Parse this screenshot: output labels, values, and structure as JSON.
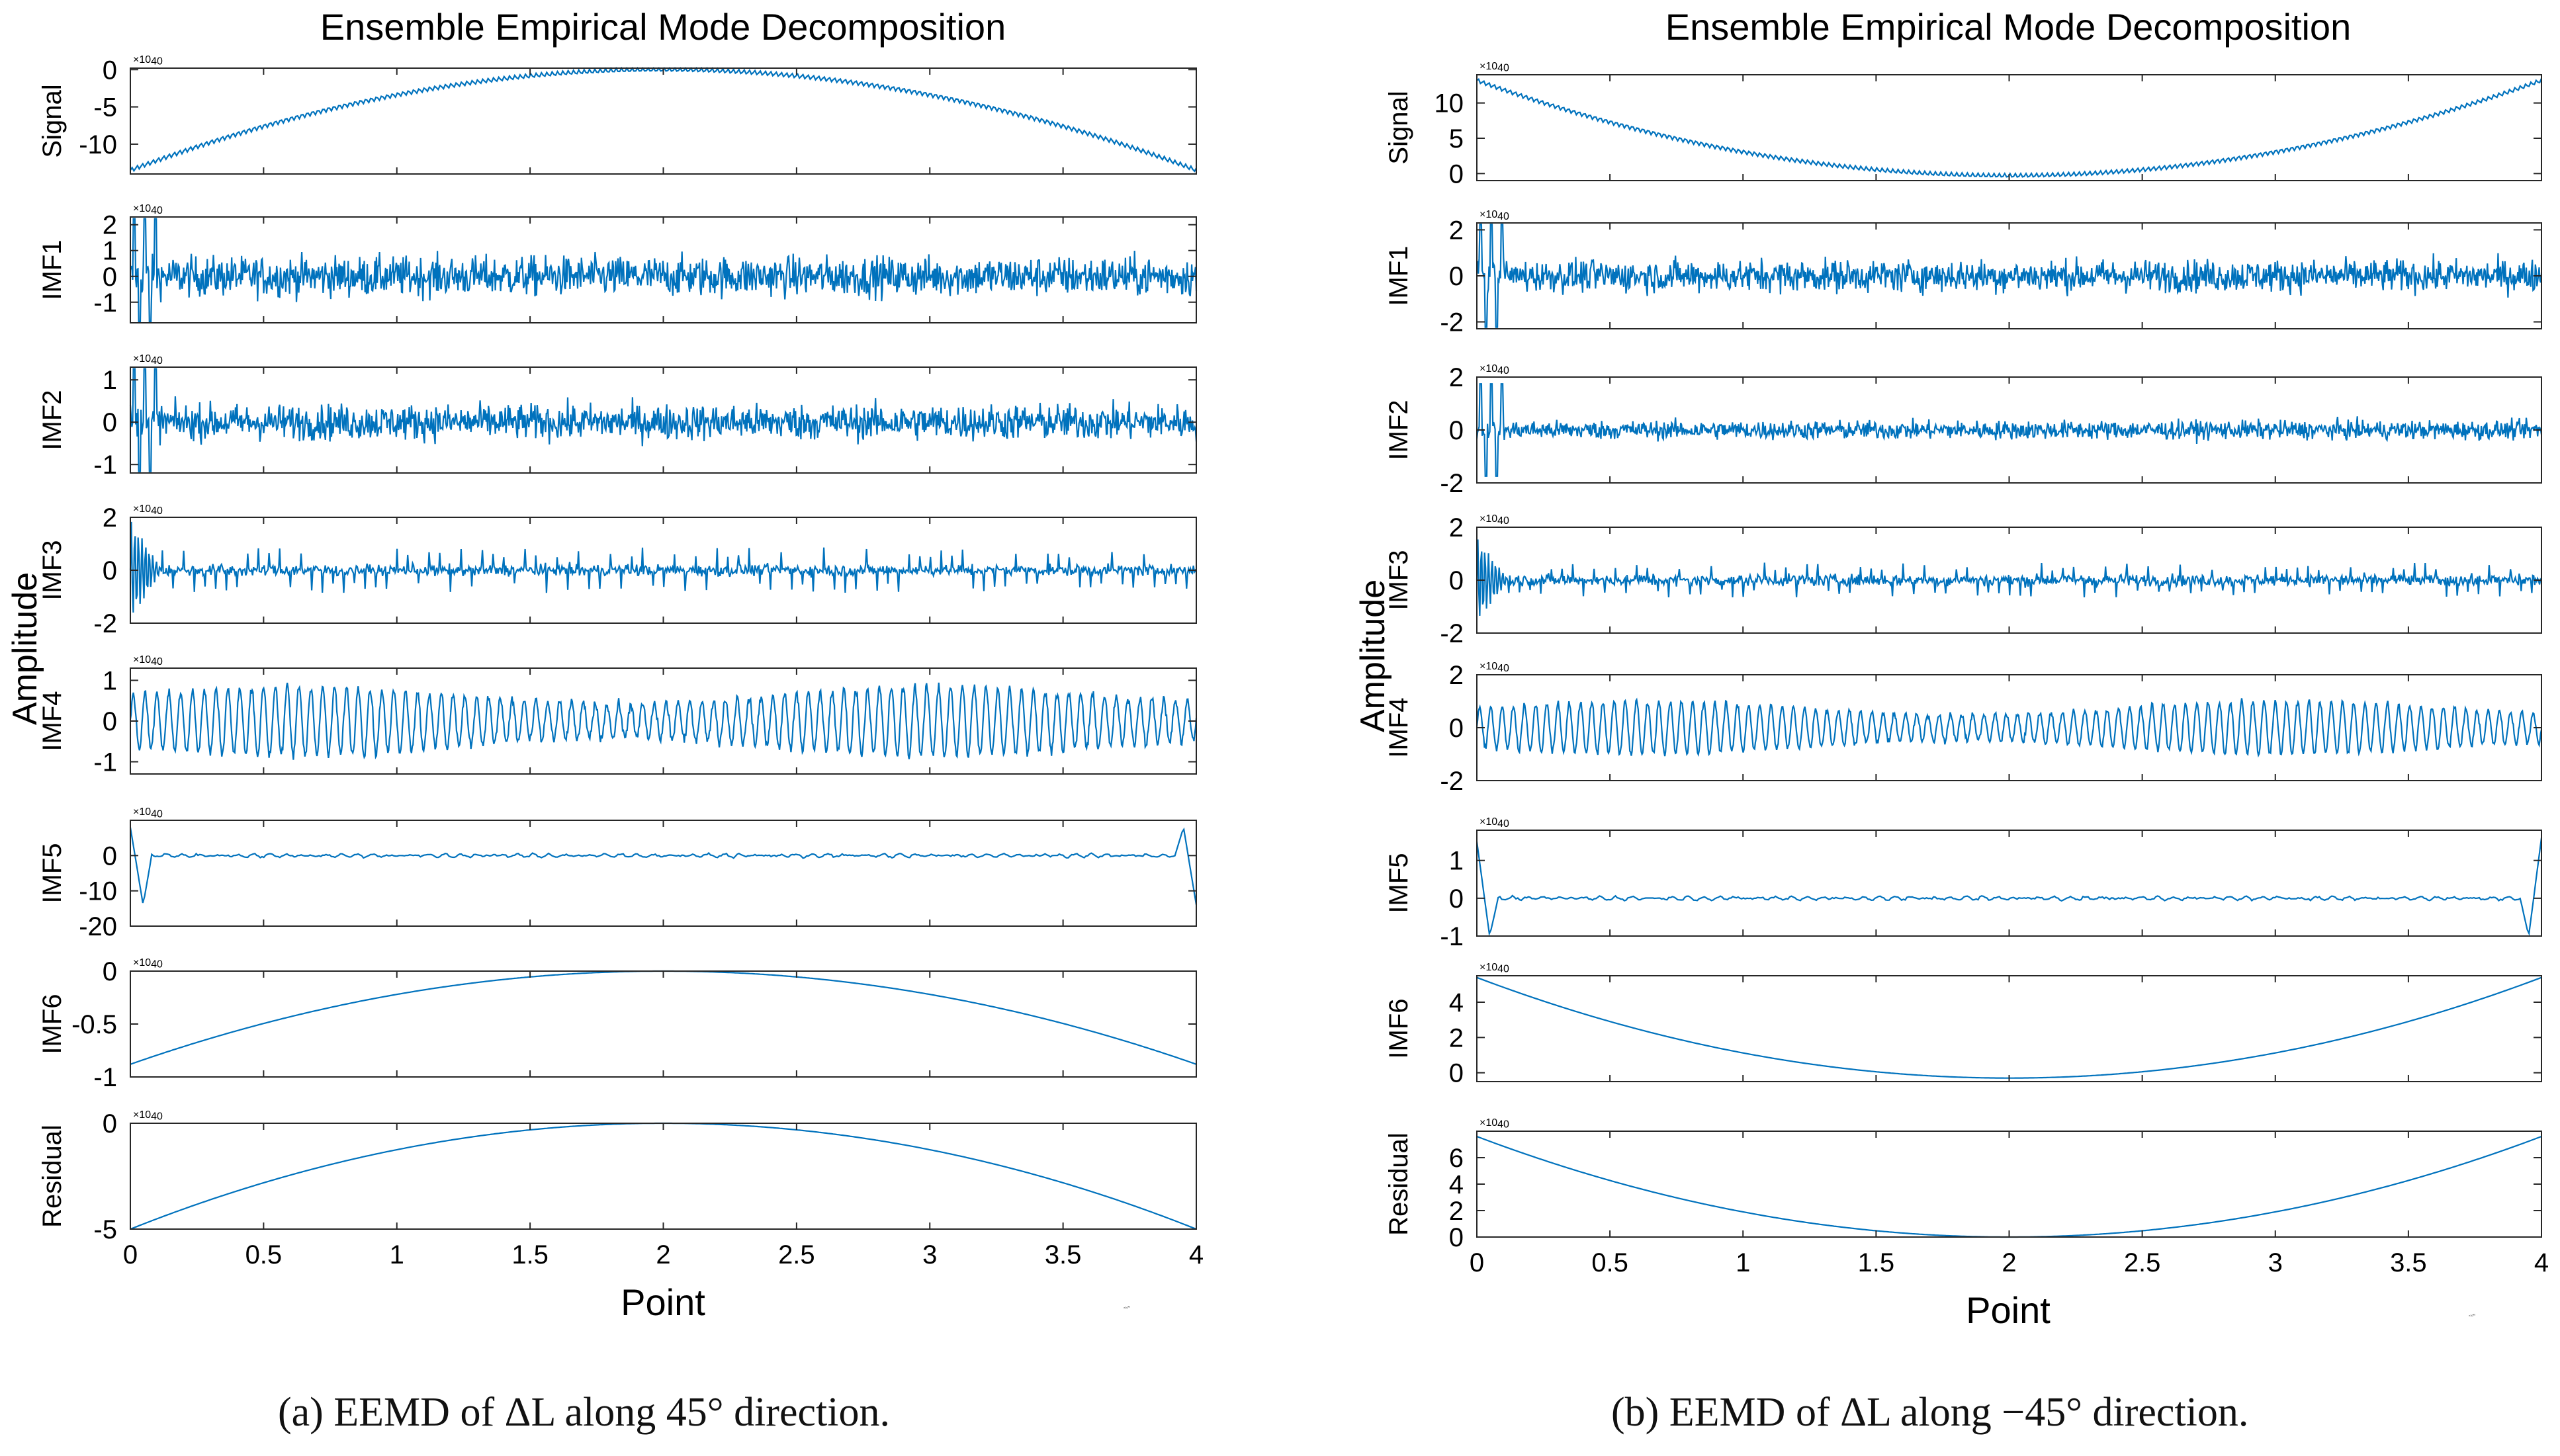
{
  "captions": [
    "(a)  EEMD of ΔL along 45° direction.",
    "(b)  EEMD of ΔL along −45° direction."
  ],
  "style": {
    "line_color": "#0072BD",
    "axes_color": "#262626",
    "text_color": "#000000"
  },
  "chart_data": [
    {
      "type": "line",
      "title": "Ensemble Empirical Mode Decomposition",
      "xlabel": "Point",
      "ylabel": "Amplitude",
      "x_range": [
        0,
        40000
      ],
      "x_ticks": [
        0,
        5000,
        10000,
        15000,
        20000,
        25000,
        30000,
        35000,
        40000
      ],
      "x_tick_labels": [
        "0",
        "0.5",
        "1",
        "1.5",
        "2",
        "2.5",
        "3",
        "3.5",
        "4"
      ],
      "x_exponent": "×10",
      "x_exponent_power": "4",
      "panels": [
        {
          "label": "Signal",
          "exponent": "×10",
          "power": "-7",
          "ylim": [
            -14,
            0.2
          ],
          "ticks": [
            0,
            -5,
            -10
          ],
          "tick_labels": [
            "0",
            "-5",
            "-10"
          ],
          "kind": "arch",
          "center": 0,
          "edge": -13.5,
          "osc": 0.3
        },
        {
          "label": "IMF1",
          "exponent": "×10",
          "power": "-8",
          "ylim": [
            -1.8,
            2.3
          ],
          "ticks": [
            -1,
            0,
            1,
            2
          ],
          "tick_labels": [
            "-1",
            "0",
            "1",
            "2"
          ],
          "kind": "noise",
          "amp": 0.55,
          "spike_lo": -1.8,
          "spike_hi": 2.3
        },
        {
          "label": "IMF2",
          "exponent": "×10",
          "power": "-8",
          "ylim": [
            -1.2,
            1.3
          ],
          "ticks": [
            -1,
            0,
            1
          ],
          "tick_labels": [
            "-1",
            "0",
            "1"
          ],
          "kind": "noise",
          "amp": 0.3,
          "spike_lo": -1.2,
          "spike_hi": 1.3
        },
        {
          "label": "IMF3",
          "exponent": "×10",
          "power": "-8",
          "ylim": [
            -2,
            2
          ],
          "ticks": [
            -2,
            0,
            2
          ],
          "tick_labels": [
            "-2",
            "0",
            "2"
          ],
          "kind": "spiky",
          "amp": 0.25,
          "spike": 0.8,
          "start": 1.9
        },
        {
          "label": "IMF4",
          "exponent": "×10",
          "power": "-8",
          "ylim": [
            -1.3,
            1.3
          ],
          "ticks": [
            -1,
            0,
            1
          ],
          "tick_labels": [
            "-1",
            "0",
            "1"
          ],
          "kind": "wave",
          "amp": 0.85,
          "cycles": 90
        },
        {
          "label": "IMF5",
          "exponent": "×10",
          "power": "-9",
          "ylim": [
            -20,
            10
          ],
          "ticks": [
            -20,
            -10,
            0
          ],
          "tick_labels": [
            "-20",
            "-10",
            "0"
          ],
          "kind": "edge",
          "amp": 0.8,
          "e1": 8,
          "e2": -14,
          "e3": 8,
          "e4": -14
        },
        {
          "label": "IMF6",
          "exponent": "×10",
          "power": "-6",
          "ylim": [
            -1,
            0
          ],
          "ticks": [
            -1,
            -0.5,
            0
          ],
          "tick_labels": [
            "-1",
            "-0.5",
            "0"
          ],
          "kind": "arch",
          "center": 0,
          "edge": -0.88,
          "osc": 0
        },
        {
          "label": "Residual",
          "exponent": "×10",
          "power": "-7",
          "ylim": [
            -5,
            0
          ],
          "ticks": [
            -5,
            0
          ],
          "tick_labels": [
            "-5",
            "0"
          ],
          "kind": "arch",
          "center": 0,
          "edge": -5,
          "osc": 0
        }
      ]
    },
    {
      "type": "line",
      "title": "Ensemble Empirical Mode Decomposition",
      "xlabel": "Point",
      "ylabel": "Amplitude",
      "x_range": [
        0,
        40000
      ],
      "x_ticks": [
        0,
        5000,
        10000,
        15000,
        20000,
        25000,
        30000,
        35000,
        40000
      ],
      "x_tick_labels": [
        "0",
        "0.5",
        "1",
        "1.5",
        "2",
        "2.5",
        "3",
        "3.5",
        "4"
      ],
      "x_exponent": "×10",
      "x_exponent_power": "4",
      "panels": [
        {
          "label": "Signal",
          "exponent": "×10",
          "power": "-7",
          "ylim": [
            -1,
            14
          ],
          "ticks": [
            0,
            5,
            10
          ],
          "tick_labels": [
            "0",
            "5",
            "10"
          ],
          "kind": "arch",
          "center": -0.3,
          "edge": 13.2,
          "osc": 0.3
        },
        {
          "label": "IMF1",
          "exponent": "×10",
          "power": "-8",
          "ylim": [
            -2.3,
            2.3
          ],
          "ticks": [
            -2,
            0,
            2
          ],
          "tick_labels": [
            "-2",
            "0",
            "2"
          ],
          "kind": "noise",
          "amp": 0.5,
          "spike_lo": -2.3,
          "spike_hi": 2.3
        },
        {
          "label": "IMF2",
          "exponent": "×10",
          "power": "-8",
          "ylim": [
            -2,
            2
          ],
          "ticks": [
            -2,
            0,
            2
          ],
          "tick_labels": [
            "-2",
            "0",
            "2"
          ],
          "kind": "noise",
          "amp": 0.25,
          "spike_lo": -1.8,
          "spike_hi": 1.8
        },
        {
          "label": "IMF3",
          "exponent": "×10",
          "power": "-8",
          "ylim": [
            -2,
            2
          ],
          "ticks": [
            -2,
            0,
            2
          ],
          "tick_labels": [
            "-2",
            "0",
            "2"
          ],
          "kind": "spiky",
          "amp": 0.25,
          "spike": 0.6,
          "start": 1.6
        },
        {
          "label": "IMF4",
          "exponent": "×10",
          "power": "-8",
          "ylim": [
            -2,
            2
          ],
          "ticks": [
            -2,
            0,
            2
          ],
          "tick_labels": [
            "-2",
            "0",
            "2"
          ],
          "kind": "wave",
          "amp": 1.0,
          "cycles": 95
        },
        {
          "label": "IMF5",
          "exponent": "×10",
          "power": "-8",
          "ylim": [
            -1,
            1.8
          ],
          "ticks": [
            -1,
            0,
            1
          ],
          "tick_labels": [
            "-1",
            "0",
            "1"
          ],
          "kind": "edge",
          "amp": 0.08,
          "e1": 1.5,
          "e2": -1,
          "e3": -1,
          "e4": 1.6
        },
        {
          "label": "IMF6",
          "exponent": "×10",
          "power": "-7",
          "ylim": [
            -0.5,
            5.5
          ],
          "ticks": [
            0,
            2,
            4
          ],
          "tick_labels": [
            "0",
            "2",
            "4"
          ],
          "kind": "arch",
          "center": -0.3,
          "edge": 5.4,
          "osc": 0
        },
        {
          "label": "Residual",
          "exponent": "×10",
          "power": "-7",
          "ylim": [
            0,
            8
          ],
          "ticks": [
            0,
            2,
            4,
            6
          ],
          "tick_labels": [
            "0",
            "2",
            "4",
            "6"
          ],
          "kind": "arch",
          "center": 0,
          "edge": 7.6,
          "osc": 0
        }
      ]
    }
  ]
}
